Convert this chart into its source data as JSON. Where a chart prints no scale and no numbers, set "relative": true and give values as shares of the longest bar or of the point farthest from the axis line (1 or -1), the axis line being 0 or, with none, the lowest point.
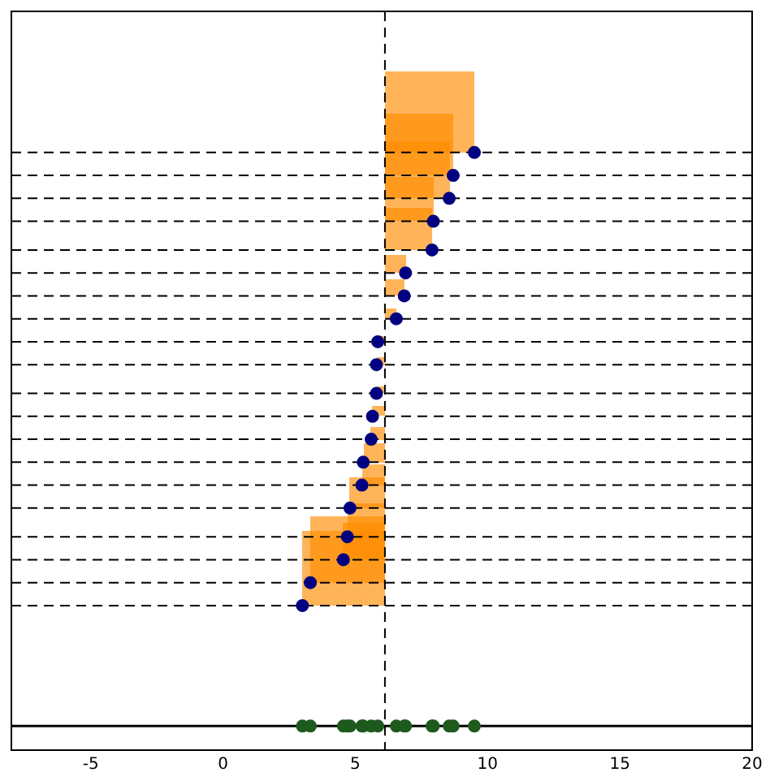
{
  "chart_data": {
    "type": "scatter",
    "relative": true,
    "xlim": [
      -8,
      20
    ],
    "xticks": [
      -5,
      0,
      5,
      10,
      15,
      20
    ],
    "tick_labels": "x",
    "grid": false,
    "legend": false,
    "marker": "circle",
    "series": [
      {
        "type": "scatter",
        "color": "#000080",
        "x": [
          3.0,
          3.3,
          4.55,
          4.7,
          4.8,
          5.25,
          5.3,
          5.6,
          5.65,
          5.8,
          5.8,
          5.85,
          6.55,
          6.85,
          6.9,
          7.9,
          7.95,
          8.55,
          8.7,
          9.5
        ],
        "values": [
          0.21,
          0.25,
          0.29,
          0.33,
          0.38,
          0.42,
          0.46,
          0.5,
          0.54,
          0.58,
          0.63,
          0.67,
          0.71,
          0.75,
          0.79,
          0.83,
          0.88,
          0.92,
          0.96,
          1
        ]
      },
      {
        "type": "scatter",
        "color": "#1e5a1e",
        "x": [
          3.0,
          3.3,
          4.55,
          4.7,
          4.8,
          5.25,
          5.3,
          5.6,
          null,
          null,
          null,
          5.85,
          6.55,
          6.85,
          6.9,
          7.9,
          7.95,
          8.55,
          8.7,
          9.5
        ],
        "values": [
          0,
          0,
          0,
          0,
          0,
          0,
          0,
          0,
          null,
          null,
          null,
          0,
          0,
          0,
          0,
          0,
          0,
          0,
          0,
          0
        ]
      }
    ],
    "ref_lines": [
      {
        "axis": "x",
        "value": 6.12,
        "line_style": "dashed",
        "color": "#000000"
      },
      {
        "axis": "y",
        "value": 0.21,
        "line_style": "dashed",
        "color": "#000000"
      },
      {
        "axis": "y",
        "value": 0.25,
        "line_style": "dashed",
        "color": "#000000"
      },
      {
        "axis": "y",
        "value": 0.29,
        "line_style": "dashed",
        "color": "#000000"
      },
      {
        "axis": "y",
        "value": 0.33,
        "line_style": "dashed",
        "color": "#000000"
      },
      {
        "axis": "y",
        "value": 0.38,
        "line_style": "dashed",
        "color": "#000000"
      },
      {
        "axis": "y",
        "value": 0.42,
        "line_style": "dashed",
        "color": "#000000"
      },
      {
        "axis": "y",
        "value": 0.46,
        "line_style": "dashed",
        "color": "#000000"
      },
      {
        "axis": "y",
        "value": 0.5,
        "line_style": "dashed",
        "color": "#000000"
      },
      {
        "axis": "y",
        "value": 0.54,
        "line_style": "dashed",
        "color": "#000000"
      },
      {
        "axis": "y",
        "value": 0.58,
        "line_style": "dashed",
        "color": "#000000"
      },
      {
        "axis": "y",
        "value": 0.63,
        "line_style": "dashed",
        "color": "#000000"
      },
      {
        "axis": "y",
        "value": 0.67,
        "line_style": "dashed",
        "color": "#000000"
      },
      {
        "axis": "y",
        "value": 0.71,
        "line_style": "dashed",
        "color": "#000000"
      },
      {
        "axis": "y",
        "value": 0.75,
        "line_style": "dashed",
        "color": "#000000"
      },
      {
        "axis": "y",
        "value": 0.79,
        "line_style": "dashed",
        "color": "#000000"
      },
      {
        "axis": "y",
        "value": 0.83,
        "line_style": "dashed",
        "color": "#000000"
      },
      {
        "axis": "y",
        "value": 0.88,
        "line_style": "dashed",
        "color": "#000000"
      },
      {
        "axis": "y",
        "value": 0.92,
        "line_style": "dashed",
        "color": "#000000"
      },
      {
        "axis": "y",
        "value": 0.96,
        "line_style": "dashed",
        "color": "#000000"
      },
      {
        "axis": "y",
        "value": 1,
        "line_style": "dashed",
        "color": "#000000"
      }
    ]
  }
}
